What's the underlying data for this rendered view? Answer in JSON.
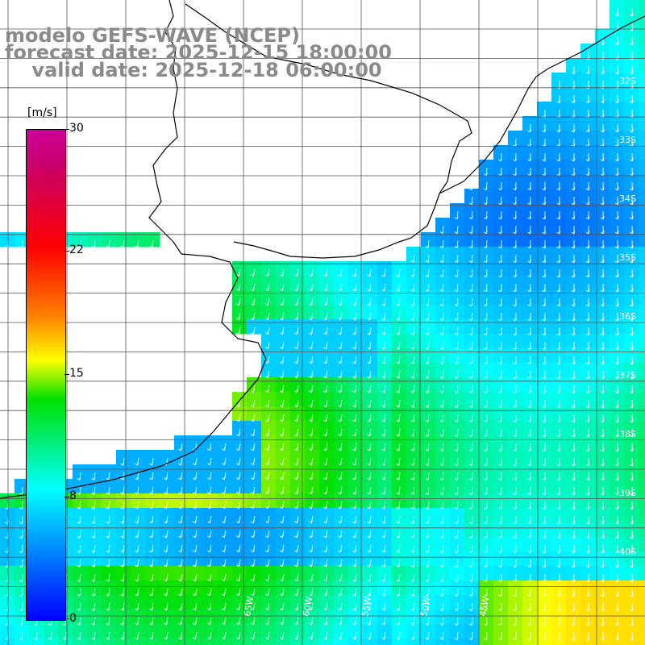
{
  "title": {
    "line1": "modelo GEFS-WAVE (NCEP)",
    "line2": "forecast date: 2025-12-15 18:00:00",
    "line3": "    valid date: 2025-12-18 06:00:00"
  },
  "colorbar": {
    "units": "[m/s]",
    "ticks": [
      "30",
      "22",
      "15",
      "8",
      "0"
    ]
  },
  "lat_labels": [
    "32S",
    "33S",
    "34S",
    "35S",
    "36S",
    "37S",
    "38S",
    "39S",
    "40S"
  ],
  "lon_labels": [
    "65W",
    "60W",
    "55W",
    "50W",
    "45W"
  ],
  "colors": {
    "land": "#ffffff",
    "grid": "#555555",
    "coast": "#000000",
    "vector": "#ffffff"
  }
}
